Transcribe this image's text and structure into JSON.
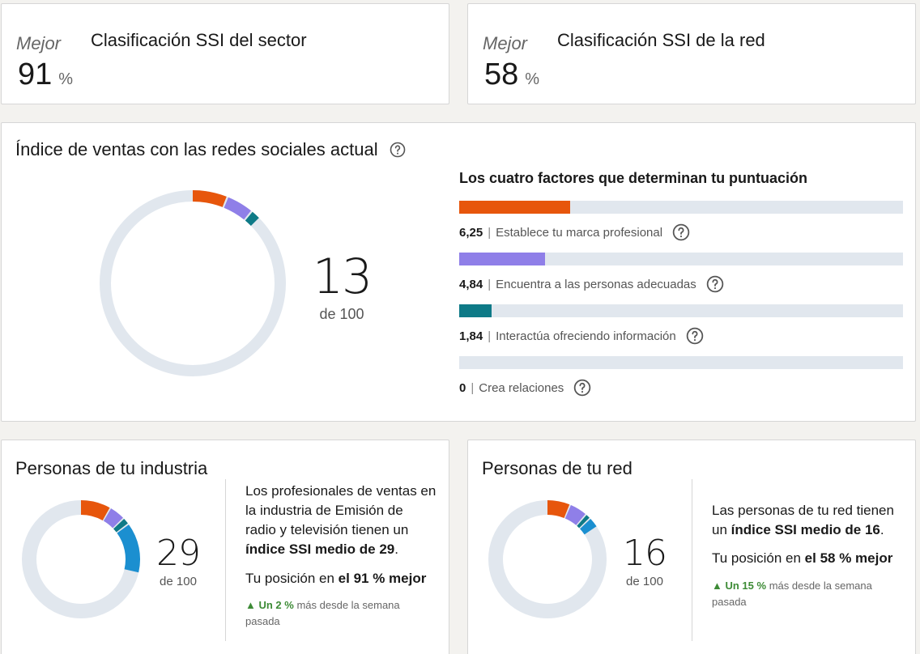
{
  "sector_rank": {
    "label": "Mejor",
    "title": "Clasificación SSI del sector",
    "value": "91",
    "unit": "%"
  },
  "network_rank": {
    "label": "Mejor",
    "title": "Clasificación SSI de la red",
    "value": "58",
    "unit": "%"
  },
  "ssi": {
    "title": "Índice de ventas con las redes sociales actual",
    "score": "13",
    "score_sub": "de 100",
    "factors_title": "Los cuatro factores que determinan tu puntuación",
    "factors": [
      {
        "value": "6,25",
        "label": "Establece tu marca profesional",
        "score": 6.25,
        "max": 25,
        "color": "#e7560c"
      },
      {
        "value": "4,84",
        "label": "Encuentra a las personas adecuadas",
        "score": 4.84,
        "max": 25,
        "color": "#8f7fe8"
      },
      {
        "value": "1,84",
        "label": "Interactúa ofreciendo información",
        "score": 1.84,
        "max": 25,
        "color": "#0e7a87"
      },
      {
        "value": "0",
        "label": "Crea relaciones",
        "score": 0,
        "max": 25,
        "color": "#1b8fd0"
      }
    ],
    "separator": "|"
  },
  "industry": {
    "title": "Personas de tu industria",
    "score": "29",
    "score_sub": "de 100",
    "segments": [
      8.5,
      4.5,
      2,
      14
    ],
    "desc_text": "Los profesionales de ventas en la industria de Emisión de radio y televisión tienen un",
    "desc_bold": "índice SSI medio de 29",
    "desc_end": ".",
    "position_text": "Tu posición en",
    "position_bold": "el 91 % mejor",
    "trend_up": "▲ Un 2 %",
    "trend_text": "más desde la semana pasada"
  },
  "network": {
    "title": "Personas de tu red",
    "score": "16",
    "score_sub": "de 100",
    "segments": [
      6.5,
      5,
      1.5,
      3
    ],
    "desc_text": "Las personas de tu red tienen un",
    "desc_bold": "índice SSI medio de 16",
    "desc_end": ".",
    "position_text": "Tu posición en",
    "position_bold": "el 58 % mejor",
    "trend_up": "▲ Un 15 %",
    "trend_text": "más desde la semana pasada"
  },
  "colors": {
    "brand": "#e7560c",
    "find": "#8f7fe8",
    "engage": "#0e7a87",
    "relate": "#1b8fd0",
    "track": "#e1e7ee",
    "up": "#3d8b36"
  },
  "icons": {
    "help": "help-circle-icon"
  }
}
